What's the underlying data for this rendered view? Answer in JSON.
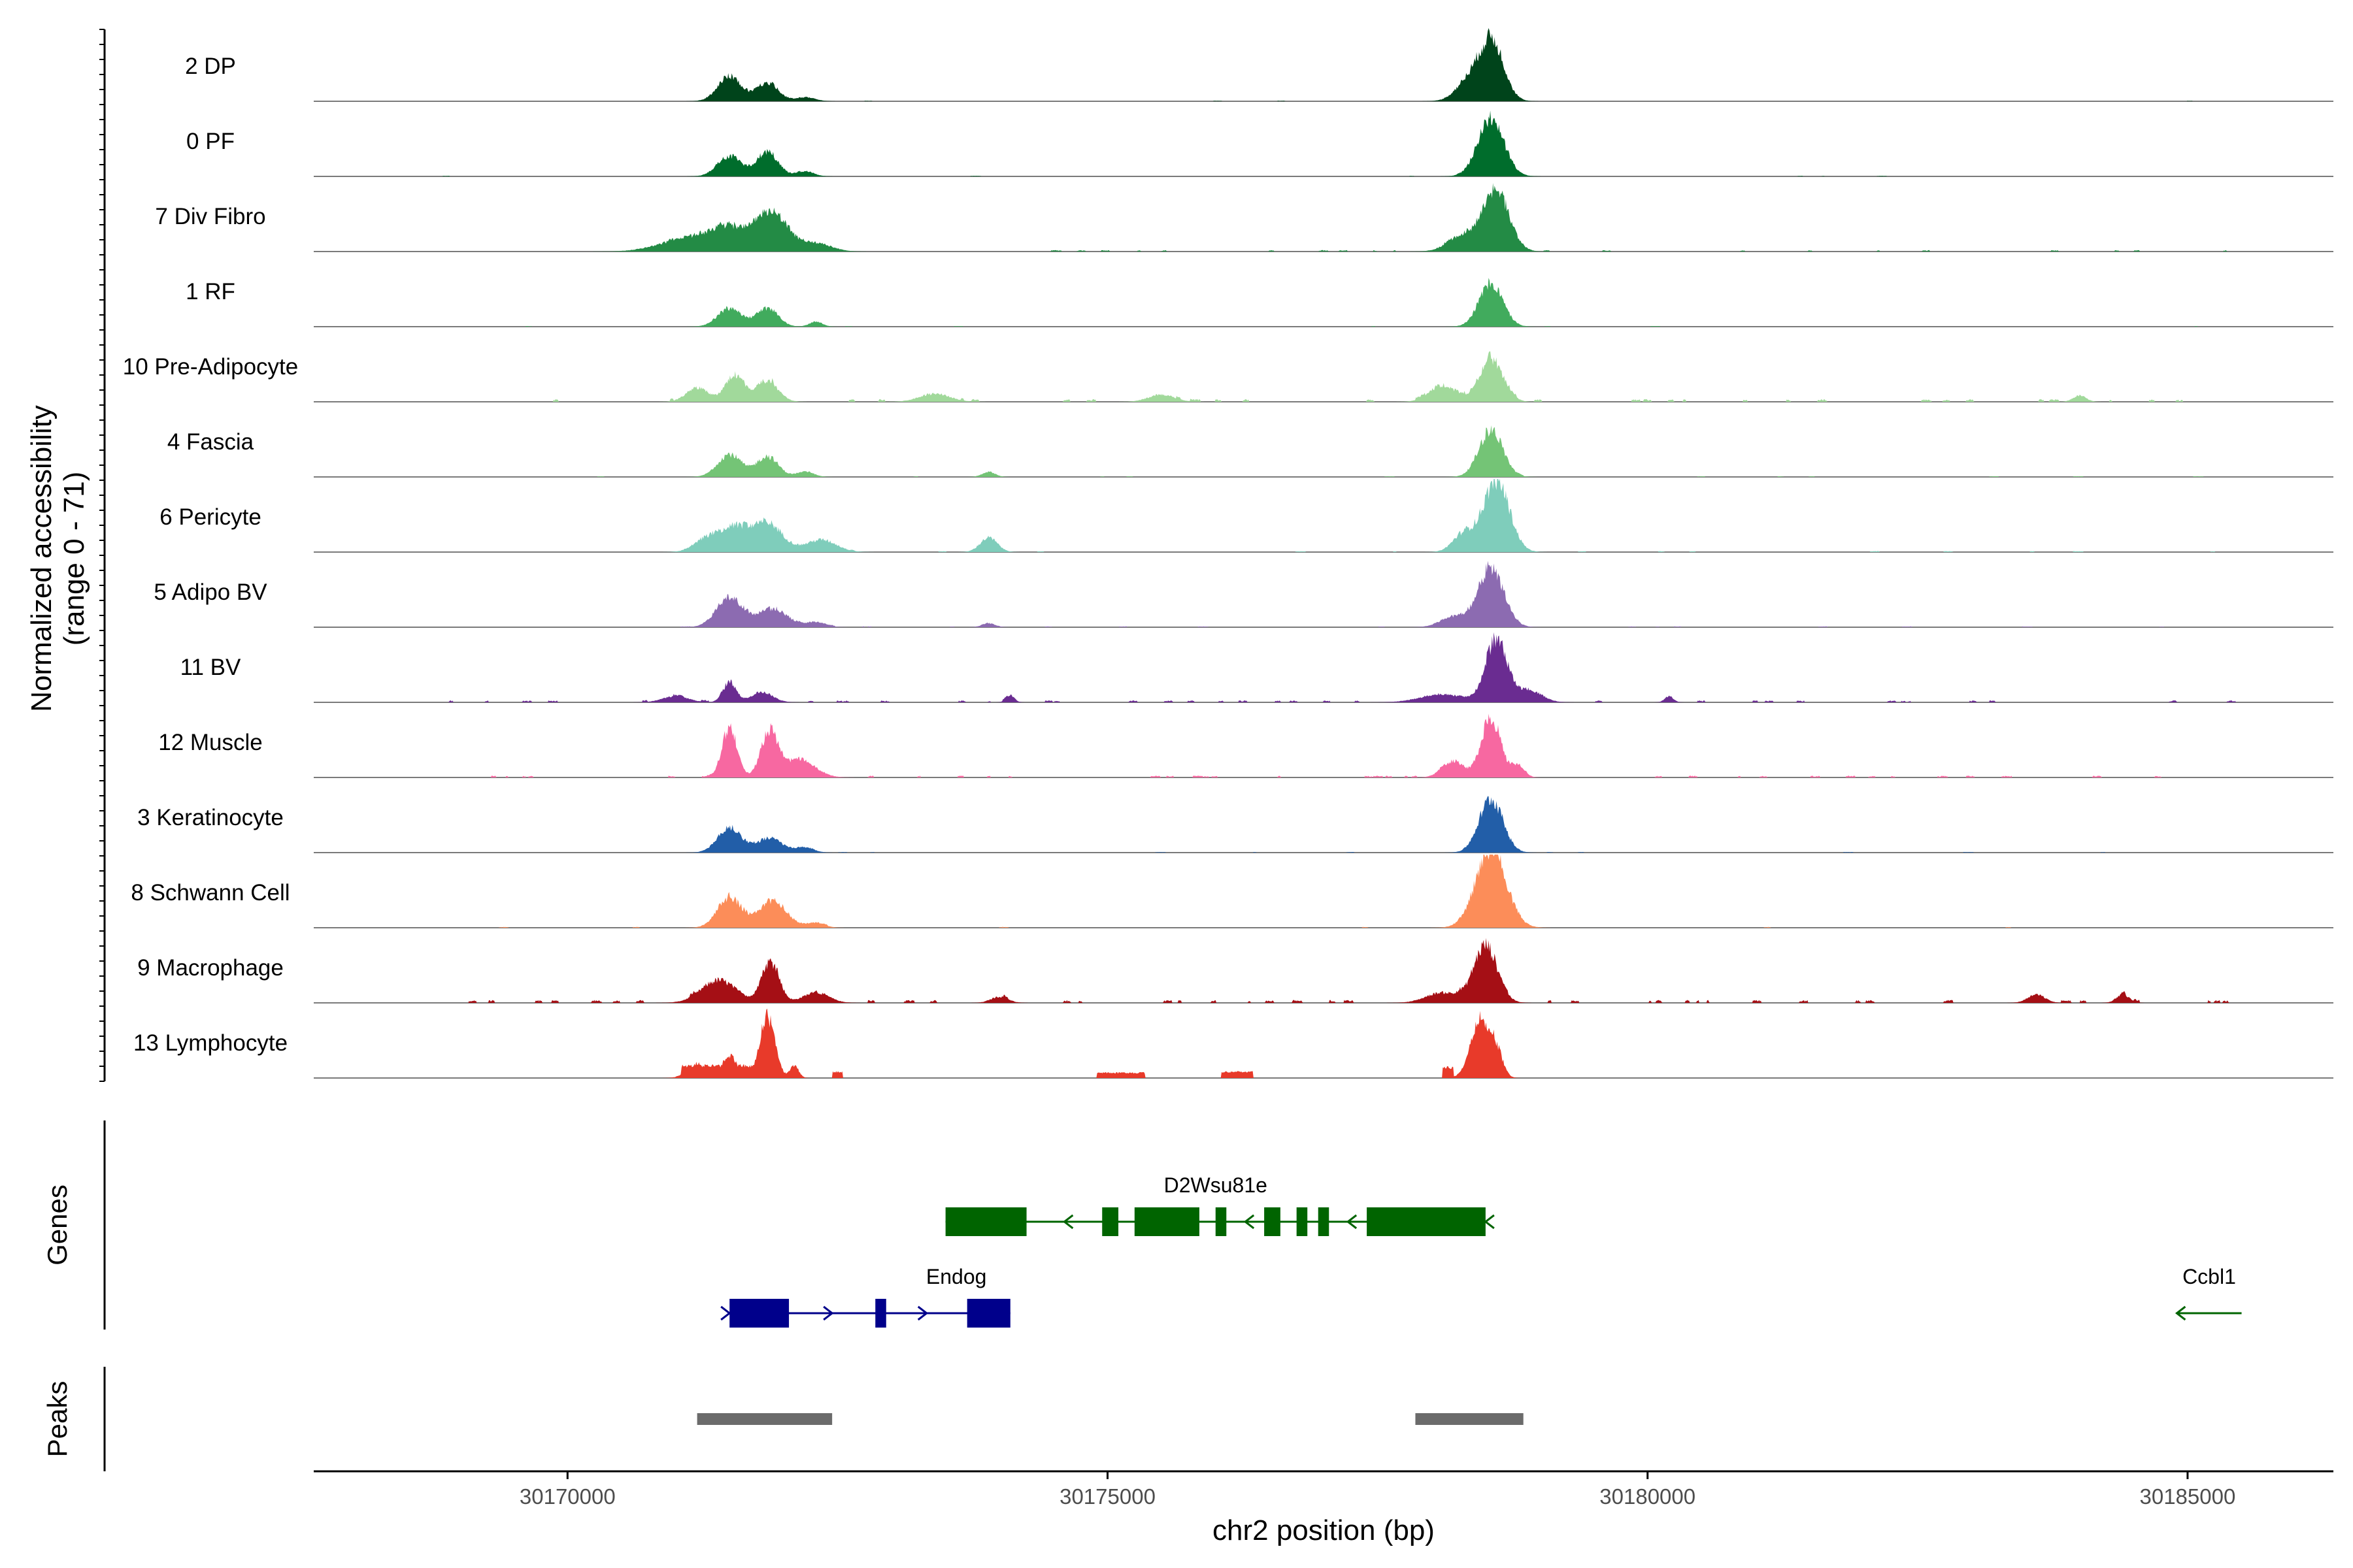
{
  "chart_data": {
    "type": "area",
    "title": "",
    "ylabel_line1": "Normalized accessibility",
    "ylabel_line2": "(range 0 - 71)",
    "y_range": [
      0,
      71
    ],
    "xlabel": "chr2 position (bp)",
    "xlim": [
      30167650,
      30186350
    ],
    "x_ticks": [
      30170000,
      30175000,
      30180000,
      30185000
    ],
    "x_tick_labels": [
      "30170000",
      "30175000",
      "30180000",
      "30185000"
    ],
    "region": [
      30168800,
      30185500
    ],
    "tracks": [
      {
        "name": "2 DP",
        "color": "#00441b",
        "noise": 0.35,
        "seed": 11,
        "peaks": [
          [
            30171500,
            110,
            24
          ],
          [
            30171850,
            100,
            18
          ],
          [
            30172200,
            90,
            4
          ],
          [
            30178350,
            120,
            20
          ],
          [
            30178560,
            110,
            58
          ]
        ]
      },
      {
        "name": "0 PF",
        "color": "#006d2c",
        "noise": 0.35,
        "seed": 12,
        "peaks": [
          [
            30171500,
            110,
            20
          ],
          [
            30171850,
            100,
            24
          ],
          [
            30172200,
            80,
            5
          ],
          [
            30178550,
            120,
            56
          ]
        ]
      },
      {
        "name": "7 Div Fibro",
        "color": "#238b45",
        "noise": 0.9,
        "seed": 13,
        "peaks": [
          [
            30171100,
            250,
            12
          ],
          [
            30171500,
            180,
            22
          ],
          [
            30171900,
            140,
            38
          ],
          [
            30172300,
            140,
            8
          ],
          [
            30178300,
            140,
            16
          ],
          [
            30178600,
            120,
            58
          ]
        ]
      },
      {
        "name": "1 RF",
        "color": "#41ab5d",
        "noise": 0.4,
        "seed": 14,
        "peaks": [
          [
            30171500,
            110,
            18
          ],
          [
            30171850,
            100,
            18
          ],
          [
            30172300,
            60,
            5
          ],
          [
            30178550,
            110,
            42
          ]
        ]
      },
      {
        "name": "10 Pre-Adipocyte",
        "color": "#a1d99b",
        "noise": 1.6,
        "seed": 15,
        "peaks": [
          [
            30171200,
            100,
            14
          ],
          [
            30171550,
            90,
            26
          ],
          [
            30171850,
            100,
            20
          ],
          [
            30173400,
            140,
            8
          ],
          [
            30175500,
            120,
            7
          ],
          [
            30178100,
            120,
            16
          ],
          [
            30178550,
            110,
            42
          ],
          [
            30184000,
            60,
            6
          ]
        ]
      },
      {
        "name": "4 Fascia",
        "color": "#74c476",
        "noise": 0.45,
        "seed": 16,
        "peaks": [
          [
            30171500,
            110,
            22
          ],
          [
            30171850,
            100,
            20
          ],
          [
            30172200,
            80,
            5
          ],
          [
            30173900,
            60,
            5
          ],
          [
            30178550,
            110,
            46
          ]
        ]
      },
      {
        "name": "6 Pericyte",
        "color": "#7fcdbb",
        "noise": 0.6,
        "seed": 17,
        "peaks": [
          [
            30171300,
            120,
            14
          ],
          [
            30171550,
            120,
            22
          ],
          [
            30171850,
            140,
            28
          ],
          [
            30172350,
            140,
            12
          ],
          [
            30173900,
            80,
            14
          ],
          [
            30178300,
            100,
            18
          ],
          [
            30178600,
            120,
            70
          ]
        ]
      },
      {
        "name": "5 Adipo BV",
        "color": "#8c6bb1",
        "noise": 0.5,
        "seed": 18,
        "peaks": [
          [
            30171500,
            120,
            30
          ],
          [
            30171900,
            140,
            18
          ],
          [
            30172300,
            90,
            5
          ],
          [
            30173900,
            60,
            4
          ],
          [
            30178200,
            120,
            10
          ],
          [
            30178550,
            120,
            58
          ]
        ]
      },
      {
        "name": "11 BV",
        "color": "#6a2c91",
        "noise": 1.2,
        "seed": 19,
        "peaks": [
          [
            30171000,
            120,
            6
          ],
          [
            30171500,
            60,
            20
          ],
          [
            30171800,
            100,
            10
          ],
          [
            30178100,
            200,
            8
          ],
          [
            30178600,
            100,
            60
          ],
          [
            30178900,
            120,
            12
          ],
          [
            30174100,
            40,
            6
          ],
          [
            30180200,
            40,
            6
          ]
        ]
      },
      {
        "name": "12 Muscle",
        "color": "#f768a1",
        "noise": 1.1,
        "seed": 20,
        "peaks": [
          [
            30171500,
            70,
            48
          ],
          [
            30171870,
            80,
            44
          ],
          [
            30172150,
            140,
            18
          ],
          [
            30178200,
            100,
            16
          ],
          [
            30178550,
            90,
            58
          ],
          [
            30178800,
            60,
            12
          ]
        ]
      },
      {
        "name": "3 Keratinocyte",
        "color": "#225ea8",
        "noise": 0.4,
        "seed": 21,
        "peaks": [
          [
            30171500,
            110,
            24
          ],
          [
            30171870,
            120,
            14
          ],
          [
            30172200,
            80,
            5
          ],
          [
            30178550,
            110,
            52
          ]
        ]
      },
      {
        "name": "8 Schwann Cell",
        "color": "#fc8d59",
        "noise": 0.5,
        "seed": 22,
        "peaks": [
          [
            30171500,
            110,
            30
          ],
          [
            30171900,
            130,
            26
          ],
          [
            30172300,
            80,
            5
          ],
          [
            30178550,
            140,
            76
          ]
        ]
      },
      {
        "name": "9 Macrophage",
        "color": "#a50f15",
        "noise": 1.8,
        "seed": 23,
        "peaks": [
          [
            30171400,
            160,
            22
          ],
          [
            30171880,
            80,
            40
          ],
          [
            30172300,
            120,
            10
          ],
          [
            30178100,
            150,
            10
          ],
          [
            30178500,
            110,
            56
          ],
          [
            30183600,
            80,
            8
          ],
          [
            30184400,
            60,
            8
          ],
          [
            30174000,
            80,
            6
          ]
        ]
      },
      {
        "name": "13 Lymphocyte",
        "color": "#e83a2a",
        "noise": 0,
        "seed": 24,
        "peaks": [
          [
            30171200,
            90,
            14
          ],
          [
            30171500,
            70,
            22
          ],
          [
            30171850,
            70,
            60
          ],
          [
            30172100,
            40,
            12
          ],
          [
            30178450,
            90,
            56
          ],
          [
            30178600,
            60,
            22
          ]
        ],
        "blocks": [
          [
            30171050,
            30171950,
            12
          ],
          [
            30172450,
            30172550,
            6
          ],
          [
            30174900,
            30175350,
            5
          ],
          [
            30176050,
            30176350,
            6
          ],
          [
            30178100,
            30178200,
            10
          ]
        ]
      }
    ],
    "genes_label": "Genes",
    "genes": [
      {
        "name": "D2Wsu81e",
        "color": "#006400",
        "strand": "-",
        "row": 0,
        "start": 30173500,
        "end": 30178500,
        "exons": [
          [
            30173500,
            30174250
          ],
          [
            30174950,
            30175100
          ],
          [
            30175250,
            30175850
          ],
          [
            30176000,
            30176100
          ],
          [
            30176450,
            30176600
          ],
          [
            30176750,
            30176850
          ],
          [
            30176950,
            30177050
          ],
          [
            30177400,
            30178500
          ]
        ]
      },
      {
        "name": "Endog",
        "color": "#00008b",
        "strand": "+",
        "row": 1,
        "start": 30171500,
        "end": 30174100,
        "exons": [
          [
            30171500,
            30172050
          ],
          [
            30172850,
            30172950
          ],
          [
            30173700,
            30174100
          ]
        ]
      },
      {
        "name": "Ccbl1",
        "color": "#006400",
        "strand": "-",
        "row": 1,
        "start": 30184900,
        "end": 30185500,
        "exons": []
      }
    ],
    "peaks_label": "Peaks",
    "peak_regions": [
      [
        30171200,
        30172450
      ],
      [
        30177850,
        30178850
      ]
    ]
  }
}
